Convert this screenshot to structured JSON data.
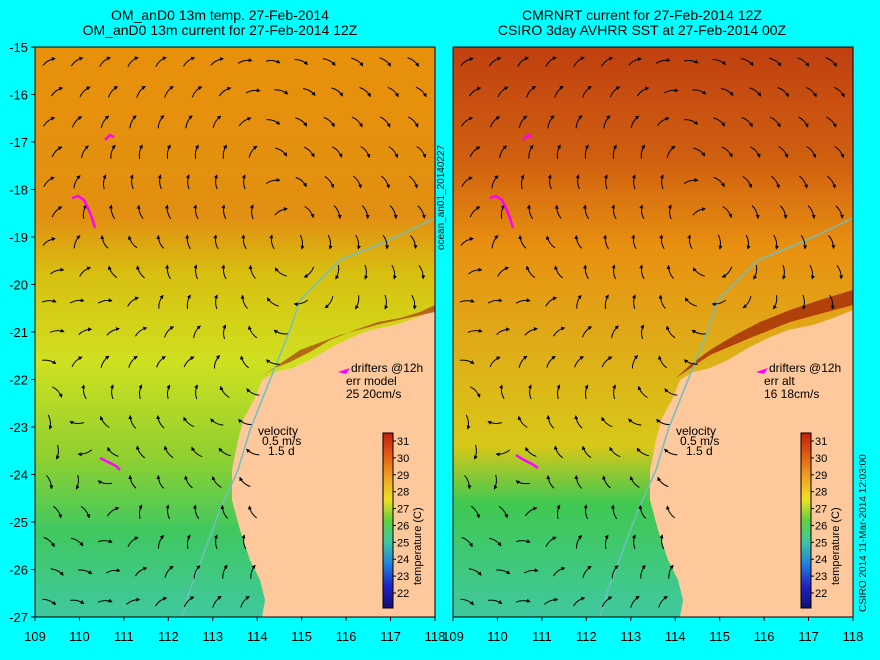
{
  "colors": {
    "background": "#00ffff",
    "land": "#fcc89c",
    "arrow": "#000000",
    "drifter": "#ff00ff",
    "shelf": "#6fc0c0"
  },
  "left_panel": {
    "title_line1": "OM_anD0 13m temp. 27-Feb-2014",
    "title_line2": "OM_anD0 13m current for 27-Feb-2014 12Z",
    "drifters_label": "drifters @12h",
    "err_label": "err model",
    "err_value": "25 20cm/s",
    "velocity_label": "velocity",
    "velocity_scale": "0.5 m/s",
    "velocity_time": "1.5 d"
  },
  "right_panel": {
    "title_line1": "CMRNRT current for 27-Feb-2014 12Z",
    "title_line2": "CSIRO 3day AVHRR SST at 27-Feb-2014 00Z",
    "drifters_label": "drifters @12h",
    "err_label": "err alt",
    "err_value": "16 18cm/s",
    "velocity_label": "velocity",
    "velocity_scale": "0.5 m/s",
    "velocity_time": "1.5 d"
  },
  "side_label": "ocean_an01_20140227",
  "credit_label": "CSIRO 2014  11-Mar-2014 12:03:00",
  "colorbar": {
    "label": "temperature (C)",
    "ticks": [
      "31",
      "30",
      "29",
      "28",
      "27",
      "26",
      "25",
      "24",
      "23",
      "22"
    ]
  },
  "x_axis": {
    "ticks": [
      "109",
      "110",
      "111",
      "112",
      "113",
      "114",
      "115",
      "116",
      "117",
      "118"
    ]
  },
  "y_axis": {
    "ticks": [
      "-15",
      "-16",
      "-17",
      "-18",
      "-19",
      "-20",
      "-21",
      "-22",
      "-23",
      "-24",
      "-25",
      "-26",
      "-27"
    ]
  }
}
